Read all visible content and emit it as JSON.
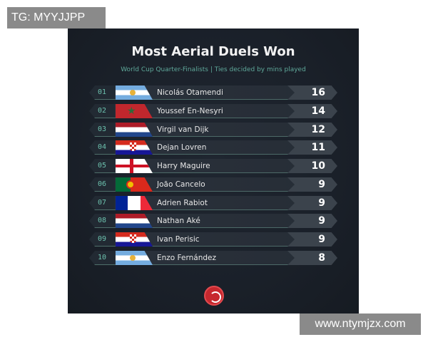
{
  "watermarks": {
    "top_left": "TG: MYYJJPP",
    "bottom_right": "www.ntymjzx.com"
  },
  "title": "Most Aerial Duels Won",
  "subtitle": "World Cup Quarter-Finalists | Ties decided by mins played",
  "rows": [
    {
      "rank": "01",
      "flag": "argentina",
      "name": "Nicolás Otamendi",
      "value": "16"
    },
    {
      "rank": "02",
      "flag": "morocco",
      "name": "Youssef En-Nesyri",
      "value": "14"
    },
    {
      "rank": "03",
      "flag": "netherlands",
      "name": "Virgil van Dijk",
      "value": "12"
    },
    {
      "rank": "04",
      "flag": "croatia",
      "name": "Dejan Lovren",
      "value": "11"
    },
    {
      "rank": "05",
      "flag": "england",
      "name": "Harry Maguire",
      "value": "10"
    },
    {
      "rank": "06",
      "flag": "portugal",
      "name": "João Cancelo",
      "value": "9"
    },
    {
      "rank": "07",
      "flag": "france",
      "name": "Adrien Rabiot",
      "value": "9"
    },
    {
      "rank": "08",
      "flag": "netherlands",
      "name": "Nathan Aké",
      "value": "9"
    },
    {
      "rank": "09",
      "flag": "croatia",
      "name": "Ivan Perisic",
      "value": "9"
    },
    {
      "rank": "10",
      "flag": "argentina",
      "name": "Enzo Fernández",
      "value": "8"
    }
  ],
  "colors": {
    "accent": "#5fa89a",
    "logo": "#c7282e"
  }
}
